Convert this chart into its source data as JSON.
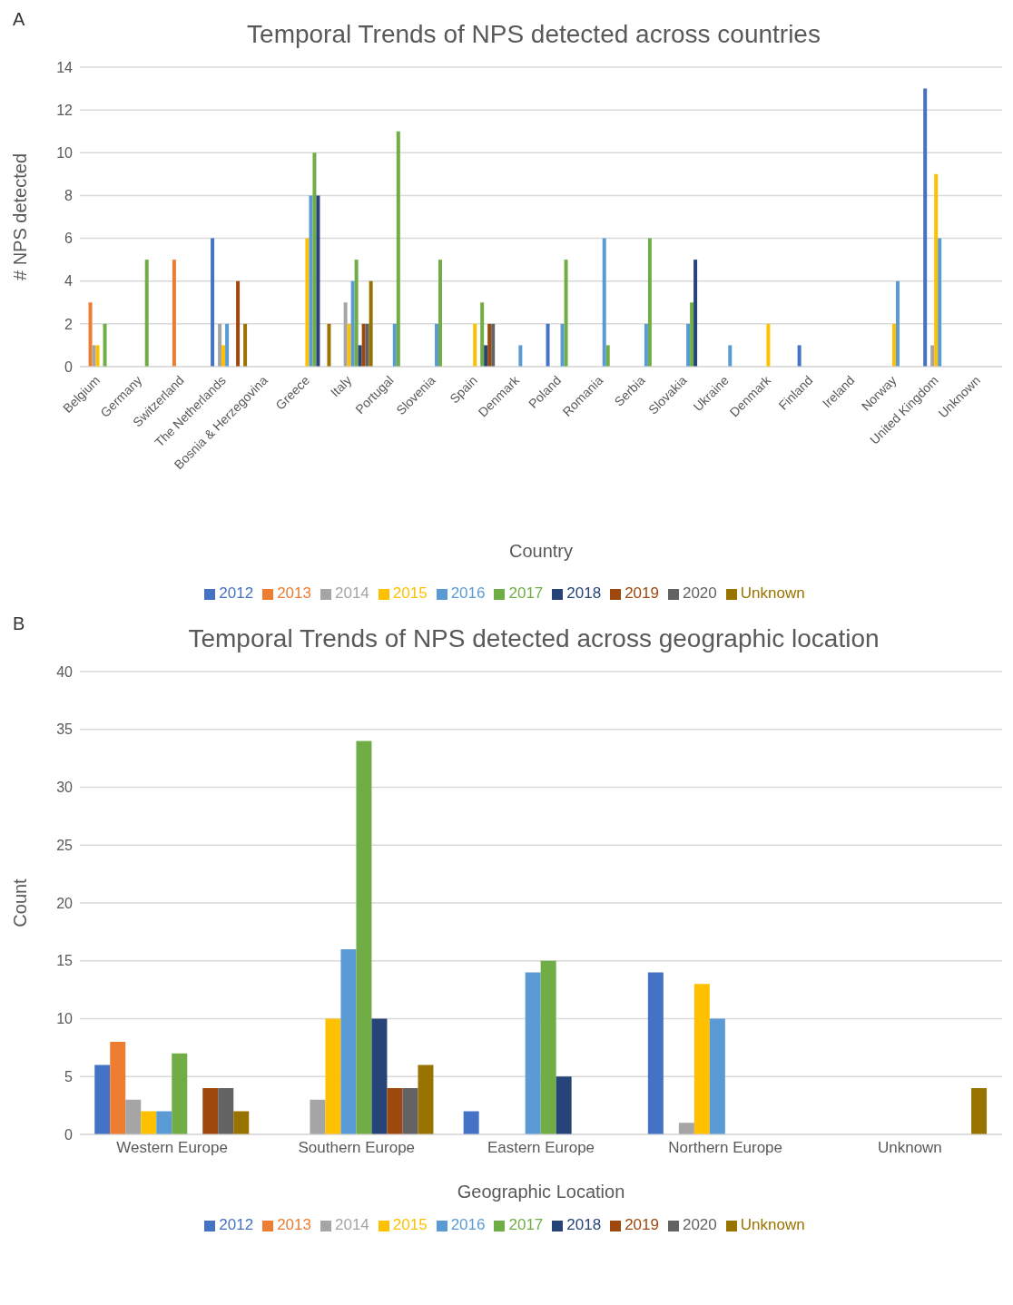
{
  "chart_data": [
    {
      "type": "bar",
      "title": "Temporal Trends of NPS detected across countries",
      "xlabel": "Country",
      "ylabel": "# NPS detected",
      "annotations": [
        "A"
      ],
      "categories": [
        "Belgium",
        "Germany",
        "Switzerland",
        "The Netherlands",
        "Bosnia & Herzegovina",
        "Greece",
        "Italy",
        "Portugal",
        "Slovenia",
        "Spain",
        "Denmark",
        "Poland",
        "Romania",
        "Serbia",
        "Slovakia",
        "Ukraine",
        "Denmark",
        "Finland",
        "Ireland",
        "Norway",
        "United Kingdom",
        "Unknown"
      ],
      "series": [
        {
          "name": "2012",
          "color": "#4472c4",
          "values": [
            null,
            null,
            null,
            6,
            null,
            null,
            null,
            null,
            null,
            null,
            null,
            2,
            null,
            null,
            null,
            null,
            null,
            1,
            null,
            null,
            13,
            null
          ]
        },
        {
          "name": "2013",
          "color": "#ed7d31",
          "values": [
            3,
            null,
            5,
            null,
            null,
            null,
            null,
            null,
            null,
            null,
            null,
            null,
            null,
            null,
            null,
            null,
            null,
            null,
            null,
            null,
            null,
            null
          ]
        },
        {
          "name": "2014",
          "color": "#a5a5a5",
          "values": [
            1,
            null,
            null,
            2,
            null,
            null,
            3,
            null,
            null,
            null,
            null,
            null,
            null,
            null,
            null,
            null,
            null,
            null,
            null,
            null,
            1,
            null
          ]
        },
        {
          "name": "2015",
          "color": "#ffc000",
          "values": [
            1,
            null,
            null,
            1,
            null,
            6,
            2,
            null,
            null,
            2,
            null,
            null,
            null,
            null,
            null,
            null,
            2,
            null,
            null,
            2,
            9,
            null
          ]
        },
        {
          "name": "2016",
          "color": "#5b9bd5",
          "values": [
            null,
            null,
            null,
            2,
            null,
            8,
            4,
            2,
            2,
            null,
            1,
            2,
            6,
            2,
            2,
            1,
            null,
            null,
            null,
            4,
            6,
            null
          ]
        },
        {
          "name": "2017",
          "color": "#70ad47",
          "values": [
            2,
            5,
            null,
            null,
            null,
            10,
            5,
            11,
            5,
            3,
            null,
            5,
            1,
            6,
            3,
            null,
            null,
            null,
            null,
            null,
            null,
            null
          ]
        },
        {
          "name": "2018",
          "color": "#264478",
          "values": [
            null,
            null,
            null,
            null,
            null,
            8,
            1,
            null,
            null,
            1,
            null,
            null,
            null,
            null,
            5,
            null,
            null,
            null,
            null,
            null,
            null,
            null
          ]
        },
        {
          "name": "2019",
          "color": "#9e480e",
          "values": [
            null,
            null,
            null,
            4,
            null,
            null,
            2,
            null,
            null,
            2,
            null,
            null,
            null,
            null,
            null,
            null,
            null,
            null,
            null,
            null,
            null,
            null
          ]
        },
        {
          "name": "2020",
          "color": "#636363",
          "values": [
            null,
            null,
            null,
            null,
            null,
            null,
            2,
            null,
            null,
            2,
            null,
            null,
            null,
            null,
            null,
            null,
            null,
            null,
            null,
            null,
            null,
            null
          ]
        },
        {
          "name": "Unknown",
          "color": "#997300",
          "values": [
            null,
            null,
            null,
            2,
            null,
            2,
            4,
            null,
            null,
            null,
            null,
            null,
            null,
            null,
            null,
            null,
            null,
            null,
            null,
            null,
            null,
            null
          ]
        }
      ],
      "ylim": [
        0,
        14
      ],
      "yticks": [
        0,
        2,
        4,
        6,
        8,
        10,
        12,
        14
      ],
      "grid": "y",
      "legend": "bottom"
    },
    {
      "type": "bar",
      "title": "Temporal Trends of NPS detected across geographic location",
      "xlabel": "Geographic Location",
      "ylabel": "Count",
      "annotations": [
        "B"
      ],
      "categories": [
        "Western Europe",
        "Southern Europe",
        "Eastern Europe",
        "Northern Europe",
        "Unknown"
      ],
      "series": [
        {
          "name": "2012",
          "color": "#4472c4",
          "values": [
            6,
            null,
            2,
            14,
            null
          ]
        },
        {
          "name": "2013",
          "color": "#ed7d31",
          "values": [
            8,
            null,
            null,
            null,
            null
          ]
        },
        {
          "name": "2014",
          "color": "#a5a5a5",
          "values": [
            3,
            3,
            null,
            1,
            null
          ]
        },
        {
          "name": "2015",
          "color": "#ffc000",
          "values": [
            2,
            10,
            null,
            13,
            null
          ]
        },
        {
          "name": "2016",
          "color": "#5b9bd5",
          "values": [
            2,
            16,
            14,
            10,
            null
          ]
        },
        {
          "name": "2017",
          "color": "#70ad47",
          "values": [
            7,
            34,
            15,
            null,
            null
          ]
        },
        {
          "name": "2018",
          "color": "#264478",
          "values": [
            null,
            10,
            5,
            null,
            null
          ]
        },
        {
          "name": "2019",
          "color": "#9e480e",
          "values": [
            4,
            4,
            null,
            null,
            null
          ]
        },
        {
          "name": "2020",
          "color": "#636363",
          "values": [
            4,
            4,
            null,
            null,
            null
          ]
        },
        {
          "name": "Unknown",
          "color": "#997300",
          "values": [
            2,
            6,
            null,
            null,
            4
          ]
        }
      ],
      "ylim": [
        0,
        40
      ],
      "yticks": [
        0,
        5,
        10,
        15,
        20,
        25,
        30,
        35,
        40
      ],
      "grid": "y",
      "legend": "bottom"
    }
  ]
}
